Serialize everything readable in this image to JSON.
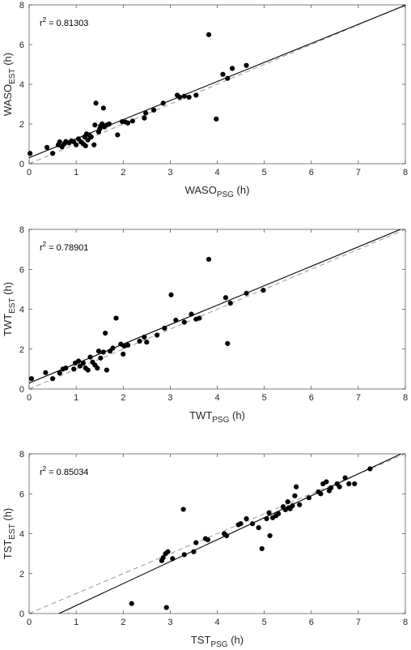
{
  "chart_data": [
    {
      "type": "scatter",
      "xlabel": {
        "main": "WASO",
        "sub": "PSG",
        "unit": "(h)"
      },
      "ylabel": {
        "main": "WASO",
        "sub": "EST",
        "unit": "(h)"
      },
      "xlim": [
        0,
        8
      ],
      "ylim": [
        0,
        8
      ],
      "xticks": [
        0,
        1,
        2,
        3,
        4,
        5,
        6,
        7,
        8
      ],
      "yticks": [
        0,
        2,
        4,
        6,
        8
      ],
      "annotation": {
        "prefix": "r",
        "sup": "2",
        "value": " = 0.81303"
      },
      "fit_line": {
        "intercept": 0.3,
        "slope": 0.96
      },
      "identity_line": true,
      "points": [
        [
          0.02,
          0.52
        ],
        [
          0.38,
          0.82
        ],
        [
          0.5,
          0.52
        ],
        [
          0.62,
          0.95
        ],
        [
          0.65,
          1.1
        ],
        [
          0.7,
          0.85
        ],
        [
          0.75,
          1.0
        ],
        [
          0.78,
          1.12
        ],
        [
          0.85,
          1.05
        ],
        [
          0.9,
          1.15
        ],
        [
          0.95,
          1.1
        ],
        [
          1.0,
          0.95
        ],
        [
          1.05,
          1.25
        ],
        [
          1.1,
          1.1
        ],
        [
          1.15,
          1.0
        ],
        [
          1.18,
          1.35
        ],
        [
          1.2,
          0.9
        ],
        [
          1.22,
          1.5
        ],
        [
          1.25,
          1.2
        ],
        [
          1.28,
          1.45
        ],
        [
          1.32,
          1.35
        ],
        [
          1.38,
          0.95
        ],
        [
          1.4,
          1.95
        ],
        [
          1.42,
          3.05
        ],
        [
          1.48,
          1.6
        ],
        [
          1.5,
          1.75
        ],
        [
          1.52,
          1.9
        ],
        [
          1.55,
          2.0
        ],
        [
          1.58,
          2.8
        ],
        [
          1.6,
          1.85
        ],
        [
          1.65,
          1.95
        ],
        [
          1.7,
          2.0
        ],
        [
          1.88,
          1.45
        ],
        [
          1.98,
          2.12
        ],
        [
          2.05,
          2.1
        ],
        [
          2.1,
          2.05
        ],
        [
          2.2,
          2.15
        ],
        [
          2.45,
          2.3
        ],
        [
          2.48,
          2.55
        ],
        [
          2.65,
          2.7
        ],
        [
          2.85,
          3.05
        ],
        [
          3.15,
          3.45
        ],
        [
          3.2,
          3.35
        ],
        [
          3.3,
          3.4
        ],
        [
          3.4,
          3.35
        ],
        [
          3.55,
          3.45
        ],
        [
          3.82,
          6.5
        ],
        [
          3.98,
          2.25
        ],
        [
          4.12,
          4.5
        ],
        [
          4.22,
          4.3
        ],
        [
          4.32,
          4.8
        ],
        [
          4.62,
          4.95
        ]
      ]
    },
    {
      "type": "scatter",
      "xlabel": {
        "main": "TWT",
        "sub": "PSG",
        "unit": "(h)"
      },
      "ylabel": {
        "main": "TWT",
        "sub": "EST",
        "unit": "(h)"
      },
      "xlim": [
        0,
        8
      ],
      "ylim": [
        0,
        8
      ],
      "xticks": [
        0,
        1,
        2,
        3,
        4,
        5,
        6,
        7,
        8
      ],
      "yticks": [
        0,
        2,
        4,
        6,
        8
      ],
      "annotation": {
        "prefix": "r",
        "sup": "2",
        "value": " = 0.78901"
      },
      "fit_line": {
        "intercept": 0.3,
        "slope": 0.975
      },
      "identity_line": true,
      "points": [
        [
          0.05,
          0.52
        ],
        [
          0.35,
          0.82
        ],
        [
          0.5,
          0.52
        ],
        [
          0.65,
          0.8
        ],
        [
          0.72,
          1.0
        ],
        [
          0.78,
          1.05
        ],
        [
          0.95,
          1.0
        ],
        [
          0.98,
          1.3
        ],
        [
          1.05,
          1.4
        ],
        [
          1.08,
          1.15
        ],
        [
          1.15,
          1.3
        ],
        [
          1.2,
          1.05
        ],
        [
          1.25,
          0.95
        ],
        [
          1.3,
          1.6
        ],
        [
          1.35,
          1.35
        ],
        [
          1.4,
          1.2
        ],
        [
          1.45,
          1.05
        ],
        [
          1.48,
          1.9
        ],
        [
          1.52,
          1.55
        ],
        [
          1.58,
          1.85
        ],
        [
          1.62,
          2.8
        ],
        [
          1.65,
          0.95
        ],
        [
          1.72,
          1.9
        ],
        [
          1.78,
          2.05
        ],
        [
          1.85,
          3.55
        ],
        [
          1.95,
          2.25
        ],
        [
          2.0,
          1.75
        ],
        [
          2.02,
          2.15
        ],
        [
          2.1,
          2.2
        ],
        [
          2.35,
          2.4
        ],
        [
          2.45,
          2.6
        ],
        [
          2.5,
          2.35
        ],
        [
          2.72,
          2.7
        ],
        [
          2.88,
          3.05
        ],
        [
          3.02,
          4.72
        ],
        [
          3.12,
          3.45
        ],
        [
          3.3,
          3.35
        ],
        [
          3.45,
          3.75
        ],
        [
          3.55,
          3.5
        ],
        [
          3.62,
          3.55
        ],
        [
          3.82,
          6.5
        ],
        [
          4.18,
          4.58
        ],
        [
          4.22,
          2.28
        ],
        [
          4.28,
          4.3
        ],
        [
          4.62,
          4.8
        ],
        [
          4.98,
          4.95
        ]
      ]
    },
    {
      "type": "scatter",
      "xlabel": {
        "main": "TST",
        "sub": "PSG",
        "unit": "(h)"
      },
      "ylabel": {
        "main": "TST",
        "sub": "EST",
        "unit": "(h)"
      },
      "xlim": [
        0,
        8
      ],
      "ylim": [
        0,
        8
      ],
      "xticks": [
        0,
        1,
        2,
        3,
        4,
        5,
        6,
        7,
        8
      ],
      "yticks": [
        0,
        2,
        4,
        6,
        8
      ],
      "annotation": {
        "prefix": "r",
        "sup": "2",
        "value": " = 0.85034"
      },
      "fit_line": {
        "intercept": -0.7,
        "slope": 1.1
      },
      "identity_line": true,
      "points": [
        [
          2.18,
          0.5
        ],
        [
          2.92,
          0.3
        ],
        [
          2.82,
          2.65
        ],
        [
          2.85,
          2.8
        ],
        [
          2.9,
          3.0
        ],
        [
          2.95,
          3.1
        ],
        [
          3.05,
          2.75
        ],
        [
          3.28,
          5.22
        ],
        [
          3.3,
          2.95
        ],
        [
          3.5,
          3.1
        ],
        [
          3.55,
          3.55
        ],
        [
          3.75,
          3.75
        ],
        [
          3.8,
          3.7
        ],
        [
          4.15,
          4.0
        ],
        [
          4.2,
          3.9
        ],
        [
          4.45,
          4.45
        ],
        [
          4.5,
          4.5
        ],
        [
          4.62,
          4.75
        ],
        [
          4.75,
          4.5
        ],
        [
          4.88,
          4.3
        ],
        [
          4.95,
          3.25
        ],
        [
          5.05,
          4.75
        ],
        [
          5.1,
          5.05
        ],
        [
          5.12,
          3.9
        ],
        [
          5.18,
          4.8
        ],
        [
          5.25,
          4.9
        ],
        [
          5.3,
          5.0
        ],
        [
          5.4,
          5.35
        ],
        [
          5.45,
          5.2
        ],
        [
          5.5,
          5.6
        ],
        [
          5.52,
          5.3
        ],
        [
          5.55,
          5.25
        ],
        [
          5.6,
          5.4
        ],
        [
          5.65,
          5.9
        ],
        [
          5.68,
          6.35
        ],
        [
          5.75,
          5.45
        ],
        [
          5.95,
          5.8
        ],
        [
          6.15,
          6.1
        ],
        [
          6.2,
          6.0
        ],
        [
          6.25,
          6.5
        ],
        [
          6.32,
          6.6
        ],
        [
          6.38,
          6.15
        ],
        [
          6.42,
          6.3
        ],
        [
          6.55,
          6.5
        ],
        [
          6.6,
          6.35
        ],
        [
          6.72,
          6.8
        ],
        [
          6.8,
          6.5
        ],
        [
          6.92,
          6.5
        ],
        [
          7.25,
          7.25
        ]
      ]
    }
  ]
}
